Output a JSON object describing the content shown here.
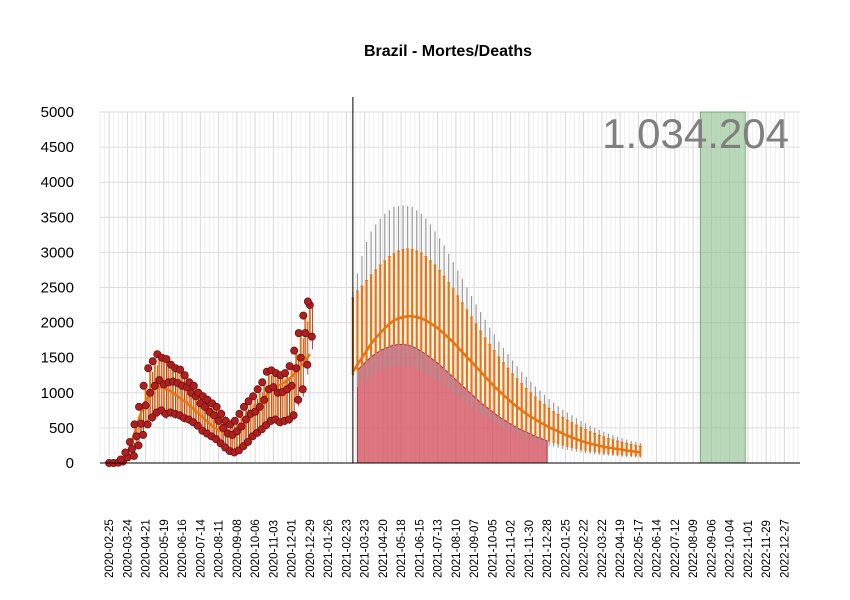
{
  "chart_data": {
    "type": "line",
    "title": "Brazil - Mortes/Deaths",
    "xlabel": "",
    "ylabel": "",
    "annotation": "1.034.204",
    "x_range": [
      "2020-02-11",
      "2023-01-20"
    ],
    "ylim": [
      0,
      5000
    ],
    "y_ticks": [
      0,
      500,
      1000,
      1500,
      2000,
      2500,
      3000,
      3500,
      4000,
      4500,
      5000
    ],
    "x_ticks": [
      "2020-02-25",
      "2020-03-24",
      "2020-04-21",
      "2020-05-19",
      "2020-06-16",
      "2020-07-14",
      "2020-08-11",
      "2020-09-08",
      "2020-10-06",
      "2020-11-03",
      "2020-12-01",
      "2020-12-29",
      "2021-01-26",
      "2021-02-23",
      "2021-03-23",
      "2021-04-20",
      "2021-05-18",
      "2021-06-15",
      "2021-07-13",
      "2021-08-10",
      "2021-09-07",
      "2021-10-05",
      "2021-11-02",
      "2021-11-30",
      "2021-12-28",
      "2022-01-25",
      "2022-02-22",
      "2022-03-22",
      "2022-04-19",
      "2022-05-17",
      "2022-06-14",
      "2022-07-12",
      "2022-08-09",
      "2022-09-06",
      "2022-10-04",
      "2022-11-01",
      "2022-11-29",
      "2022-12-27"
    ],
    "grid": true,
    "legend": "none",
    "vertical_line": "2021-03-05",
    "red_band": {
      "start": "2021-03-12",
      "end": "2021-12-28"
    },
    "green_band": {
      "start": "2022-08-20",
      "end": "2022-10-28",
      "ymax": 5000
    },
    "observed_points": {
      "start": "2020-02-25",
      "step_days": 7,
      "values": [
        0,
        0,
        5,
        20,
        80,
        200,
        380,
        560,
        820,
        1000,
        1100,
        1180,
        1120,
        1150,
        1160,
        1140,
        1100,
        1080,
        1000,
        950,
        850,
        800,
        730,
        680,
        600,
        500,
        420,
        400,
        450,
        520,
        620,
        700,
        730,
        800,
        900,
        1050,
        1080,
        1000,
        1010,
        1050,
        1100,
        1350,
        1500,
        1850,
        2250
      ]
    },
    "observed_daily_range": {
      "start": "2020-02-25",
      "step_days": 7,
      "low": [
        0,
        0,
        0,
        5,
        30,
        100,
        250,
        400,
        550,
        650,
        720,
        750,
        700,
        720,
        700,
        680,
        640,
        620,
        580,
        530,
        460,
        420,
        380,
        340,
        280,
        220,
        170,
        150,
        180,
        240,
        300,
        380,
        430,
        480,
        540,
        600,
        620,
        580,
        600,
        620,
        680,
        900,
        1050,
        1400,
        1800
      ],
      "high": [
        0,
        5,
        15,
        50,
        150,
        300,
        550,
        800,
        1100,
        1350,
        1450,
        1550,
        1500,
        1480,
        1400,
        1350,
        1330,
        1250,
        1150,
        1100,
        1000,
        950,
        900,
        850,
        800,
        700,
        600,
        550,
        600,
        700,
        800,
        880,
        950,
        1050,
        1150,
        1300,
        1320,
        1280,
        1250,
        1280,
        1380,
        1600,
        1850,
        2100,
        2300
      ]
    },
    "model_fit": {
      "start": "2020-02-25",
      "step_days": 7,
      "values": [
        0,
        0,
        5,
        30,
        120,
        300,
        520,
        720,
        880,
        980,
        1050,
        1080,
        1070,
        1040,
        1000,
        950,
        900,
        860,
        800,
        740,
        680,
        620,
        560,
        510,
        470,
        440,
        430,
        440,
        470,
        520,
        600,
        680,
        760,
        840,
        920,
        1000,
        1060,
        1100,
        1130,
        1170,
        1230,
        1300,
        1380,
        1460,
        1550
      ]
    },
    "forecast": {
      "start": "2021-03-05",
      "step_days": 7,
      "median": [
        1300,
        1400,
        1500,
        1600,
        1700,
        1780,
        1850,
        1920,
        1980,
        2030,
        2060,
        2080,
        2090,
        2090,
        2080,
        2060,
        2030,
        1990,
        1950,
        1900,
        1840,
        1780,
        1720,
        1650,
        1580,
        1510,
        1440,
        1370,
        1300,
        1230,
        1160,
        1090,
        1030,
        970,
        910,
        850,
        800,
        750,
        700,
        660,
        620,
        580,
        545,
        510,
        480,
        450,
        420,
        390,
        365,
        340,
        315,
        295,
        275,
        260,
        245,
        230,
        220,
        210,
        200,
        190,
        180,
        170,
        160,
        150
      ],
      "low": [
        1250,
        1320,
        1390,
        1450,
        1510,
        1560,
        1600,
        1630,
        1660,
        1680,
        1690,
        1690,
        1680,
        1660,
        1630,
        1590,
        1550,
        1500,
        1450,
        1400,
        1340,
        1280,
        1220,
        1160,
        1100,
        1040,
        980,
        920,
        860,
        810,
        760,
        710,
        660,
        620,
        580,
        540,
        500,
        470,
        440,
        410,
        380,
        355,
        330,
        305,
        285,
        265,
        245,
        228,
        212,
        198,
        185,
        173,
        162,
        152,
        143,
        135,
        128,
        121,
        115,
        109,
        104,
        99,
        95,
        92
      ],
      "high": [
        2350,
        2450,
        2520,
        2600,
        2680,
        2750,
        2820,
        2880,
        2940,
        2980,
        3020,
        3040,
        3050,
        3040,
        3020,
        2990,
        2940,
        2880,
        2820,
        2740,
        2660,
        2570,
        2480,
        2380,
        2280,
        2180,
        2080,
        1980,
        1880,
        1780,
        1690,
        1600,
        1510,
        1430,
        1350,
        1270,
        1200,
        1130,
        1060,
        1000,
        940,
        880,
        830,
        780,
        730,
        690,
        650,
        610,
        575,
        540,
        505,
        475,
        445,
        420,
        395,
        372,
        350,
        330,
        312,
        295,
        280,
        265,
        250,
        240
      ],
      "gray_high": [
        2450,
        2700,
        2950,
        3150,
        3300,
        3400,
        3480,
        3550,
        3600,
        3650,
        3660,
        3670,
        3660,
        3650,
        3600,
        3550,
        3480,
        3400,
        3300,
        3200,
        3100,
        2980,
        2860,
        2740,
        2620,
        2500,
        2380,
        2260,
        2150,
        2040,
        1930,
        1830,
        1730,
        1640,
        1550,
        1460,
        1380,
        1300,
        1230,
        1160,
        1090,
        1030,
        970,
        910,
        860,
        810,
        760,
        720,
        680,
        640,
        600,
        565,
        530,
        500,
        470,
        445,
        420,
        395,
        375,
        355,
        335,
        315,
        300,
        285
      ]
    }
  }
}
